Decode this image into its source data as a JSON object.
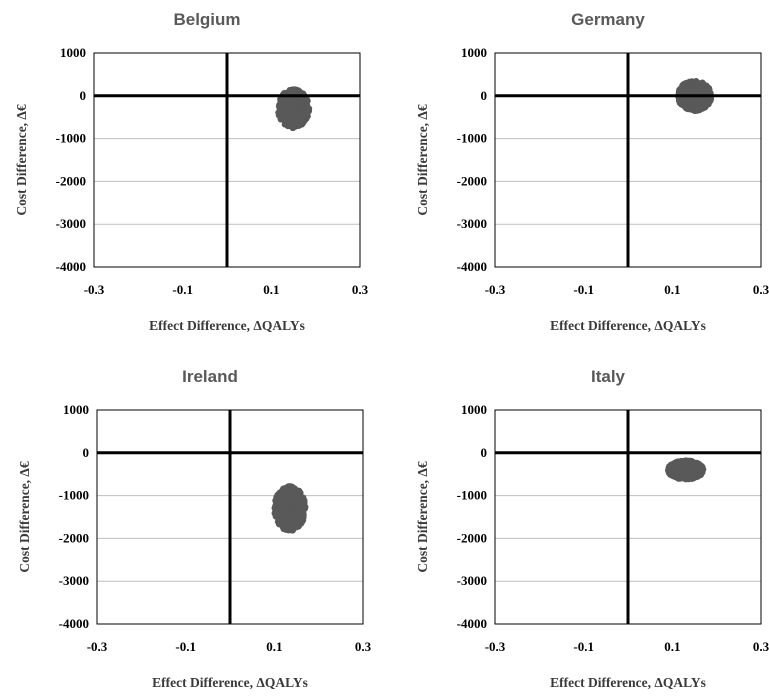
{
  "chart_data": [
    {
      "type": "scatter",
      "title": "Belgium",
      "xlabel": "Effect Difference, ΔQALYs",
      "ylabel": "Cost Difference, Δ€",
      "xlim": [
        -0.3,
        0.3
      ],
      "ylim": [
        -4000,
        1000
      ],
      "x_ticks": [
        "-0.3",
        "-0.1",
        "0.1",
        "0.3"
      ],
      "y_ticks": [
        "1000",
        "0",
        "-1000",
        "-2000",
        "-3000",
        "-4000"
      ],
      "grid": true,
      "marker_color": "#595959",
      "cloud": {
        "x_center": 0.15,
        "x_spread": 0.035,
        "y_center": -300,
        "y_spread": 450,
        "n": 600
      }
    },
    {
      "type": "scatter",
      "title": "Germany",
      "xlabel": "Effect Difference, ΔQALYs",
      "ylabel": "Cost Difference, Δ€",
      "xlim": [
        -0.3,
        0.3
      ],
      "ylim": [
        -4000,
        1000
      ],
      "x_ticks": [
        "-0.3",
        "-0.1",
        "0.1",
        "0.3"
      ],
      "y_ticks": [
        "1000",
        "0",
        "-1000",
        "-2000",
        "-3000",
        "-4000"
      ],
      "grid": true,
      "marker_color": "#595959",
      "cloud": {
        "x_center": 0.15,
        "x_spread": 0.038,
        "y_center": 0,
        "y_spread": 350,
        "n": 600
      }
    },
    {
      "type": "scatter",
      "title": "Ireland",
      "xlabel": "Effect Difference, ΔQALYs",
      "ylabel": "Cost Difference, Δ€",
      "xlim": [
        -0.3,
        0.3
      ],
      "ylim": [
        -4000,
        1000
      ],
      "x_ticks": [
        "-0.3",
        "-0.1",
        "0.1",
        "0.3"
      ],
      "y_ticks": [
        "1000",
        "0",
        "-1000",
        "-2000",
        "-3000",
        "-4000"
      ],
      "grid": true,
      "marker_color": "#595959",
      "cloud": {
        "x_center": 0.135,
        "x_spread": 0.035,
        "y_center": -1300,
        "y_spread": 520,
        "n": 600
      }
    },
    {
      "type": "scatter",
      "title": "Italy",
      "xlabel": "Effect Difference, ΔQALYs",
      "ylabel": "Cost Difference, Δ€",
      "xlim": [
        -0.3,
        0.3
      ],
      "ylim": [
        -4000,
        1000
      ],
      "x_ticks": [
        "-0.3",
        "-0.1",
        "0.1",
        "0.3"
      ],
      "y_ticks": [
        "1000",
        "0",
        "-1000",
        "-2000",
        "-3000",
        "-4000"
      ],
      "grid": true,
      "marker_color": "#595959",
      "cloud": {
        "x_center": 0.13,
        "x_spread": 0.04,
        "y_center": -400,
        "y_spread": 220,
        "n": 600
      }
    }
  ]
}
